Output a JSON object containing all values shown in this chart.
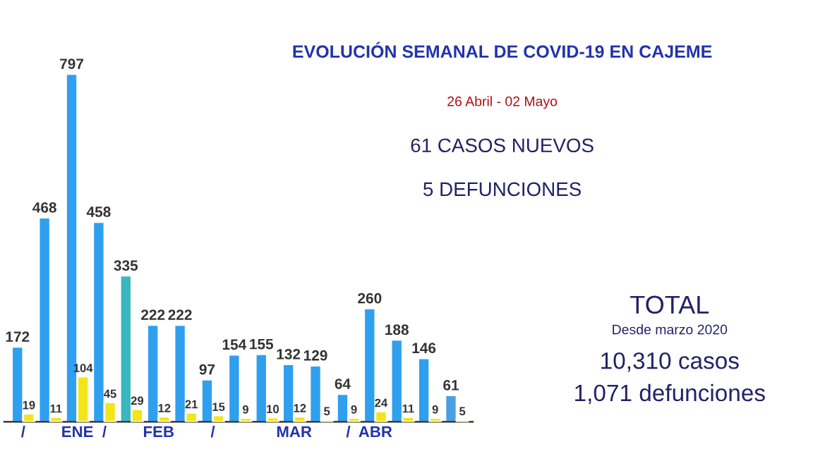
{
  "chart_data": {
    "type": "bar",
    "title": "EVOLUCIÓN SEMANAL DE COVID-19 EN CAJEME",
    "subtitle": "26 Abril - 02 Mayo",
    "categories": [
      "/",
      null,
      "ENE",
      "/",
      null,
      "FEB",
      null,
      "/",
      null,
      null,
      "MAR",
      null,
      "/",
      "ABR",
      null,
      null,
      null
    ],
    "series": [
      {
        "type": "bar",
        "colors": [
          "#2f9ff0",
          "#2f9ff0",
          "#2f9ff0",
          "#2f9ff0",
          "#3bb7c0",
          "#2f9ff0",
          "#2f9ff0",
          "#2f9ff0",
          "#2f9ff0",
          "#2f9ff0",
          "#2f9ff0",
          "#2f9ff0",
          "#2f9ff0",
          "#2f9ff0",
          "#2f9ff0",
          "#2f9ff0",
          "#4a9fe0"
        ],
        "values": [
          172,
          468,
          797,
          458,
          335,
          222,
          222,
          97,
          154,
          155,
          132,
          129,
          64,
          260,
          188,
          146,
          61
        ]
      },
      {
        "type": "bar",
        "color": "#f2e51a",
        "values": [
          19,
          11,
          104,
          45,
          29,
          12,
          21,
          15,
          9,
          10,
          12,
          5,
          9,
          24,
          11,
          9,
          5
        ]
      }
    ],
    "data_labels": true,
    "legend": false,
    "grid": false,
    "annotations": [
      "61 CASOS NUEVOS",
      "5 DEFUNCIONES",
      "TOTAL",
      "Desde marzo 2020",
      "10,310 casos",
      "1,071 defunciones"
    ]
  }
}
